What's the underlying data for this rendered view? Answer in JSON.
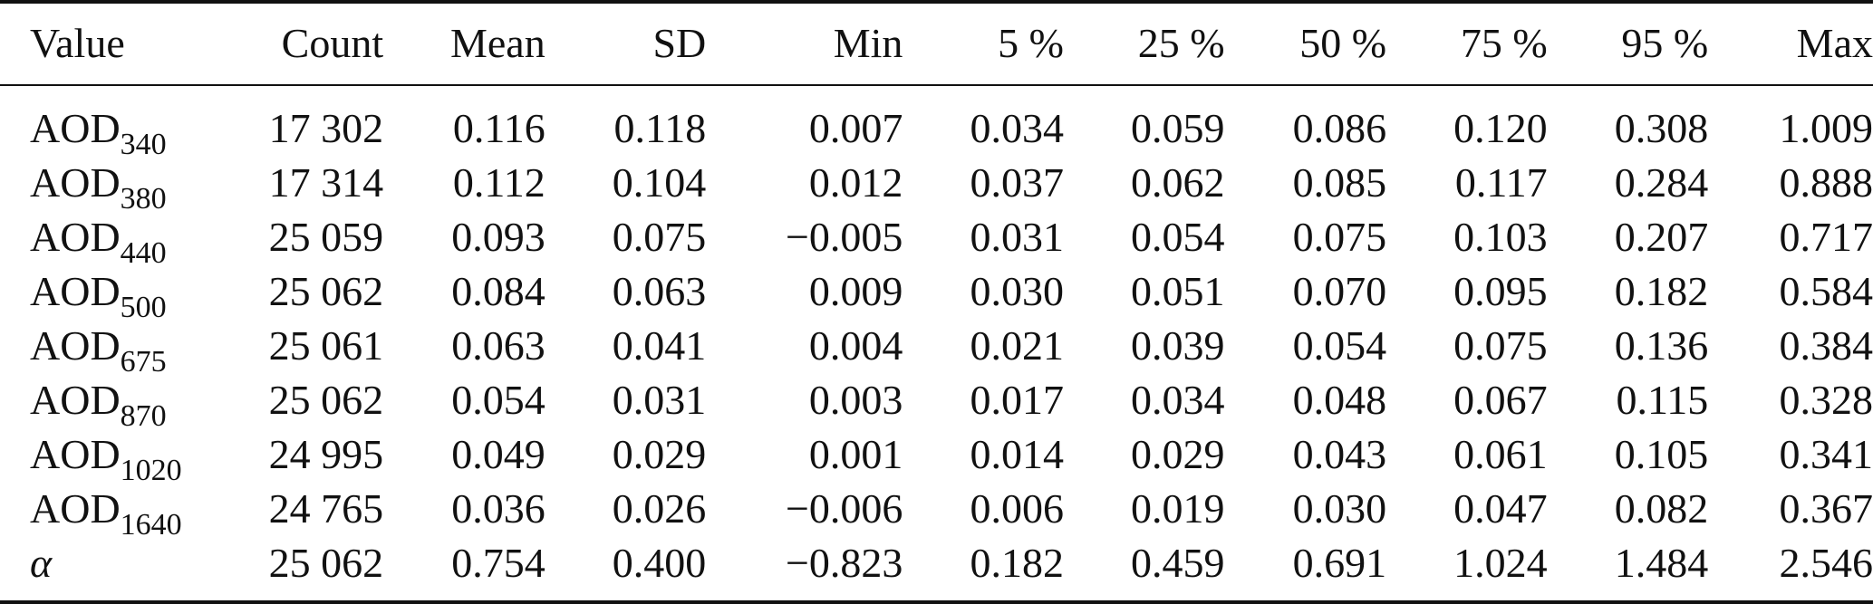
{
  "table": {
    "headers": [
      "Value",
      "Count",
      "Mean",
      "SD",
      "Min",
      "5 %",
      "25 %",
      "50 %",
      "75 %",
      "95 %",
      "Max"
    ],
    "rows": [
      {
        "label": "AOD",
        "sub": "340",
        "values": [
          "17 302",
          "0.116",
          "0.118",
          "0.007",
          "0.034",
          "0.059",
          "0.086",
          "0.120",
          "0.308",
          "1.009"
        ]
      },
      {
        "label": "AOD",
        "sub": "380",
        "values": [
          "17 314",
          "0.112",
          "0.104",
          "0.012",
          "0.037",
          "0.062",
          "0.085",
          "0.117",
          "0.284",
          "0.888"
        ]
      },
      {
        "label": "AOD",
        "sub": "440",
        "values": [
          "25 059",
          "0.093",
          "0.075",
          "−0.005",
          "0.031",
          "0.054",
          "0.075",
          "0.103",
          "0.207",
          "0.717"
        ]
      },
      {
        "label": "AOD",
        "sub": "500",
        "values": [
          "25 062",
          "0.084",
          "0.063",
          "0.009",
          "0.030",
          "0.051",
          "0.070",
          "0.095",
          "0.182",
          "0.584"
        ]
      },
      {
        "label": "AOD",
        "sub": "675",
        "values": [
          "25 061",
          "0.063",
          "0.041",
          "0.004",
          "0.021",
          "0.039",
          "0.054",
          "0.075",
          "0.136",
          "0.384"
        ]
      },
      {
        "label": "AOD",
        "sub": "870",
        "values": [
          "25 062",
          "0.054",
          "0.031",
          "0.003",
          "0.017",
          "0.034",
          "0.048",
          "0.067",
          "0.115",
          "0.328"
        ]
      },
      {
        "label": "AOD",
        "sub": "1020",
        "values": [
          "24 995",
          "0.049",
          "0.029",
          "0.001",
          "0.014",
          "0.029",
          "0.043",
          "0.061",
          "0.105",
          "0.341"
        ]
      },
      {
        "label": "AOD",
        "sub": "1640",
        "values": [
          "24 765",
          "0.036",
          "0.026",
          "−0.006",
          "0.006",
          "0.019",
          "0.030",
          "0.047",
          "0.082",
          "0.367"
        ]
      },
      {
        "label": "α",
        "sub": "",
        "values": [
          "25 062",
          "0.754",
          "0.400",
          "−0.823",
          "0.182",
          "0.459",
          "0.691",
          "1.024",
          "1.484",
          "2.546"
        ]
      }
    ]
  }
}
